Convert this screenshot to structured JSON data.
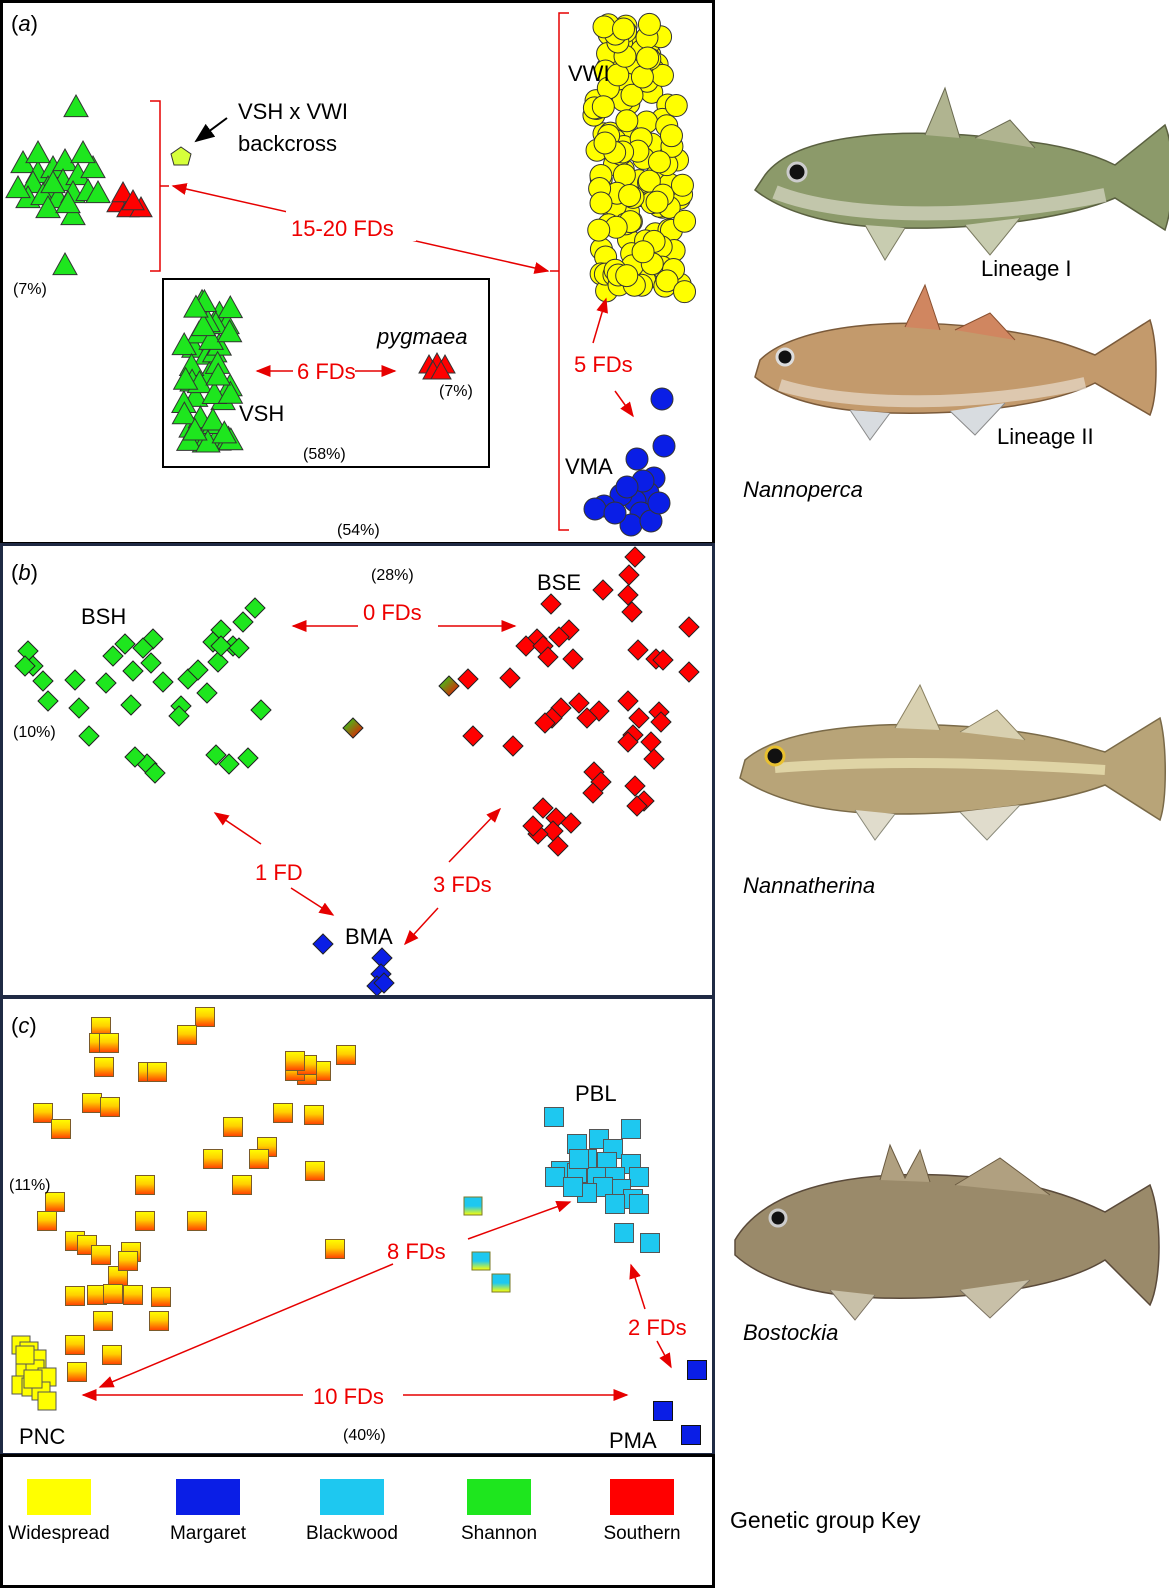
{
  "panel_a": {
    "letter": "a",
    "labels": {
      "vwi": "VWI",
      "vsh": "VSH",
      "vma": "VMA",
      "pygmaea": "pygmaea",
      "backcross_line1": "VSH x VWI",
      "backcross_line2": "backcross"
    },
    "fd_labels": {
      "main": "15-20 FDs",
      "inset": "6 FDs",
      "vwi_vma": "5 FDs"
    },
    "percents": {
      "left": "(7%)",
      "inset_red": "(7%)",
      "inset_bottom": "(58%)",
      "bottom": "(54%)"
    }
  },
  "panel_b": {
    "letter": "b",
    "labels": {
      "bsh": "BSH",
      "bse": "BSE",
      "bma": "BMA"
    },
    "fd_labels": {
      "top": "0 FDs",
      "left": "1 FD",
      "right": "3 FDs"
    },
    "percents": {
      "top": "(28%)",
      "left": "(10%)"
    }
  },
  "panel_c": {
    "letter": "c",
    "labels": {
      "pbl": "PBL",
      "pnc": "PNC",
      "pma": "PMA"
    },
    "fd_labels": {
      "diag": "8 FDs",
      "bottom": "10 FDs",
      "right": "2 FDs"
    },
    "percents": {
      "left": "(11%)",
      "bottom": "(40%)"
    }
  },
  "key": {
    "title": "Genetic group Key",
    "items": [
      {
        "label": "Widespread",
        "color": "#ffff00"
      },
      {
        "label": "Margaret",
        "color": "#0a1ee6"
      },
      {
        "label": "Blackwood",
        "color": "#1ec8f0"
      },
      {
        "label": "Shannon",
        "color": "#1ee61e"
      },
      {
        "label": "Southern",
        "color": "#ff0000"
      }
    ]
  },
  "side": {
    "lineage1": "Lineage I",
    "lineage2": "Lineage II",
    "genus1": "Nannoperca",
    "genus2": "Nannatherina",
    "genus3": "Bostockia"
  },
  "colors": {
    "arrow": "#e60000",
    "green": "#1ee61e",
    "red": "#ff0000",
    "yellow": "#ffff00",
    "blue": "#0a1ee6",
    "cyan": "#1ec8f0"
  }
}
